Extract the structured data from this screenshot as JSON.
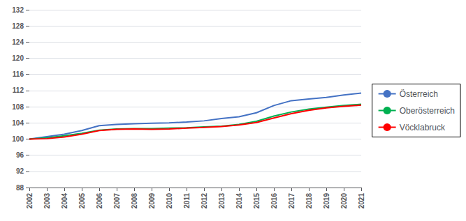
{
  "chart_data": {
    "type": "line",
    "x": [
      2002,
      2003,
      2004,
      2005,
      2006,
      2007,
      2008,
      2009,
      2010,
      2011,
      2012,
      2013,
      2014,
      2015,
      2016,
      2017,
      2018,
      2019,
      2020,
      2021
    ],
    "xlim": [
      2002,
      2021
    ],
    "xticks": [
      2002,
      2003,
      2004,
      2005,
      2006,
      2007,
      2008,
      2009,
      2010,
      2011,
      2012,
      2013,
      2014,
      2015,
      2016,
      2017,
      2018,
      2019,
      2020,
      2021
    ],
    "ylim": [
      88,
      132
    ],
    "yticks": [
      88,
      92,
      96,
      100,
      104,
      108,
      112,
      116,
      120,
      124,
      128,
      132
    ],
    "grid": true,
    "legend": "right",
    "series": [
      {
        "name": "Österreich",
        "color": "#4472c4",
        "values": [
          100.0,
          100.6,
          101.2,
          102.1,
          103.3,
          103.6,
          103.8,
          103.9,
          104.0,
          104.2,
          104.5,
          105.1,
          105.5,
          106.5,
          108.3,
          109.5,
          109.9,
          110.3,
          110.9,
          111.4
        ]
      },
      {
        "name": "Oberösterreich",
        "color": "#00b050",
        "values": [
          100.0,
          100.3,
          100.8,
          101.4,
          102.2,
          102.5,
          102.6,
          102.6,
          102.7,
          102.8,
          103.0,
          103.2,
          103.6,
          104.4,
          105.7,
          106.7,
          107.4,
          107.9,
          108.3,
          108.6
        ]
      },
      {
        "name": "Vöcklabruck",
        "color": "#ff0000",
        "values": [
          100.0,
          100.1,
          100.5,
          101.2,
          102.1,
          102.4,
          102.5,
          102.4,
          102.5,
          102.7,
          102.9,
          103.1,
          103.5,
          104.1,
          105.2,
          106.3,
          107.1,
          107.7,
          108.1,
          108.4
        ]
      }
    ]
  }
}
